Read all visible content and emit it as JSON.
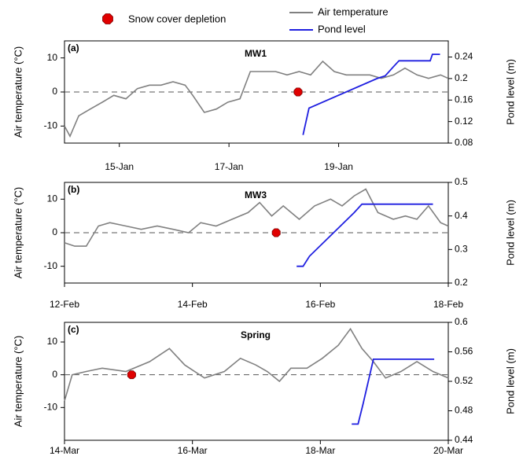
{
  "chart_data": [
    {
      "type": "line",
      "label": "(a)",
      "title": "MW1",
      "legend": "top",
      "ylabel": "Air temperature (°C)",
      "y2label": "Pond level (m)",
      "xlim": [
        14,
        21
      ],
      "xticks": [
        {
          "value": 15,
          "label": "15-Jan"
        },
        {
          "value": 17,
          "label": "17-Jan"
        },
        {
          "value": 19,
          "label": "19-Jan"
        }
      ],
      "ylim": [
        -15,
        15
      ],
      "yticks": [
        -10,
        0,
        10
      ],
      "y2lim": [
        0.08,
        0.27
      ],
      "y2ticks": [
        0.08,
        0.12,
        0.16,
        0.2,
        0.24
      ],
      "reference_line": 0,
      "series": [
        {
          "name": "Air temperature",
          "type": "line",
          "color": "#808080",
          "x": [
            14,
            14.1,
            14.26,
            14.47,
            14.69,
            14.9,
            15.12,
            15.33,
            15.55,
            15.76,
            15.98,
            16.2,
            16.34,
            16.55,
            16.77,
            16.98,
            17.2,
            17.39,
            17.63,
            17.85,
            18.06,
            18.28,
            18.49,
            18.71,
            18.92,
            19.14,
            19.35,
            19.57,
            19.78,
            20,
            20.21,
            20.43,
            20.64,
            20.86,
            21
          ],
          "values": [
            -10,
            -13,
            -7,
            -5,
            -3,
            -1,
            -2,
            1,
            2,
            2,
            3,
            2,
            -1,
            -6,
            -5,
            -3,
            -2,
            6,
            6,
            6,
            5,
            6,
            5,
            9,
            6,
            5,
            5,
            5,
            4,
            5,
            7,
            5,
            4,
            5,
            4
          ]
        },
        {
          "name": "Pond level",
          "type": "line",
          "axis": "y2",
          "color": "#1f1fe0",
          "x": [
            18.35,
            18.46,
            19.7,
            19.85,
            20,
            20.1,
            20.67,
            20.71,
            20.85
          ],
          "values": [
            0.095,
            0.145,
            0.2,
            0.205,
            0.222,
            0.233,
            0.233,
            0.245,
            0.245
          ]
        },
        {
          "name": "Snow cover depletion",
          "type": "scatter",
          "color": "#e00000",
          "x": [
            18.26
          ],
          "values": [
            0
          ]
        }
      ]
    },
    {
      "type": "line",
      "label": "(b)",
      "title": "MW3",
      "ylabel": "Air temperature (°C)",
      "y2label": "Pond level (m)",
      "xlim": [
        12,
        18
      ],
      "xticks": [
        {
          "value": 12,
          "label": "12-Feb"
        },
        {
          "value": 14,
          "label": "14-Feb"
        },
        {
          "value": 16,
          "label": "16-Feb"
        },
        {
          "value": 18,
          "label": "18-Feb"
        }
      ],
      "ylim": [
        -15,
        15
      ],
      "yticks": [
        -10,
        0,
        10
      ],
      "y2lim": [
        0.2,
        0.5
      ],
      "y2ticks": [
        0.2,
        0.3,
        0.4,
        0.5
      ],
      "reference_line": 0,
      "series": [
        {
          "type": "line",
          "color": "#808080",
          "x": [
            12,
            12.16,
            12.34,
            12.53,
            12.71,
            12.96,
            13.2,
            13.45,
            13.7,
            13.94,
            14.13,
            14.37,
            14.62,
            14.87,
            15.05,
            15.24,
            15.42,
            15.67,
            15.91,
            16.16,
            16.34,
            16.53,
            16.71,
            16.9,
            17.14,
            17.33,
            17.51,
            17.69,
            17.88,
            18
          ],
          "values": [
            -3,
            -4,
            -4,
            2,
            3,
            2,
            1,
            2,
            1,
            0,
            3,
            2,
            4,
            6,
            9,
            5,
            8,
            4,
            8,
            10,
            8,
            11,
            13,
            6,
            4,
            5,
            4,
            8,
            3,
            2
          ]
        },
        {
          "type": "line",
          "axis": "y2",
          "color": "#1f1fe0",
          "x": [
            15.63,
            15.73,
            15.83,
            16.53,
            16.65,
            17.76
          ],
          "values": [
            0.25,
            0.25,
            0.28,
            0.41,
            0.435,
            0.435
          ]
        },
        {
          "type": "scatter",
          "color": "#e00000",
          "x": [
            15.31
          ],
          "values": [
            0
          ]
        }
      ]
    },
    {
      "type": "line",
      "label": "(c)",
      "title": "Spring",
      "ylabel": "Air temperature (°C)",
      "y2label": "Pond level (m)",
      "xlim": [
        14,
        20
      ],
      "xticks": [
        {
          "value": 14,
          "label": "14-Mar"
        },
        {
          "value": 16,
          "label": "16-Mar"
        },
        {
          "value": 18,
          "label": "18-Mar"
        },
        {
          "value": 20,
          "label": "20-Mar"
        }
      ],
      "ylim": [
        -20,
        16
      ],
      "yticks": [
        -10,
        0,
        10
      ],
      "y2lim": [
        0.44,
        0.6
      ],
      "y2ticks": [
        0.44,
        0.48,
        0.52,
        0.56,
        0.6
      ],
      "reference_line": 0,
      "series": [
        {
          "type": "line",
          "color": "#808080",
          "x": [
            14,
            14.12,
            14.34,
            14.59,
            14.96,
            15.33,
            15.64,
            15.88,
            16.19,
            16.5,
            16.75,
            16.99,
            17.17,
            17.36,
            17.54,
            17.79,
            18.03,
            18.28,
            18.47,
            18.65,
            18.83,
            19.02,
            19.26,
            19.51,
            19.76,
            20
          ],
          "values": [
            -8,
            0,
            1,
            2,
            1,
            4,
            8,
            3,
            -1,
            1,
            5,
            3,
            1,
            -2,
            2,
            2,
            5,
            9,
            14,
            8,
            4,
            -1,
            1,
            4,
            1,
            -1
          ]
        },
        {
          "type": "line",
          "axis": "y2",
          "color": "#1f1fe0",
          "x": [
            18.49,
            18.59,
            18.67,
            18.83,
            19.78
          ],
          "values": [
            0.462,
            0.462,
            0.49,
            0.55,
            0.55
          ]
        },
        {
          "type": "scatter",
          "color": "#e00000",
          "x": [
            15.05
          ],
          "values": [
            0
          ]
        }
      ]
    }
  ]
}
